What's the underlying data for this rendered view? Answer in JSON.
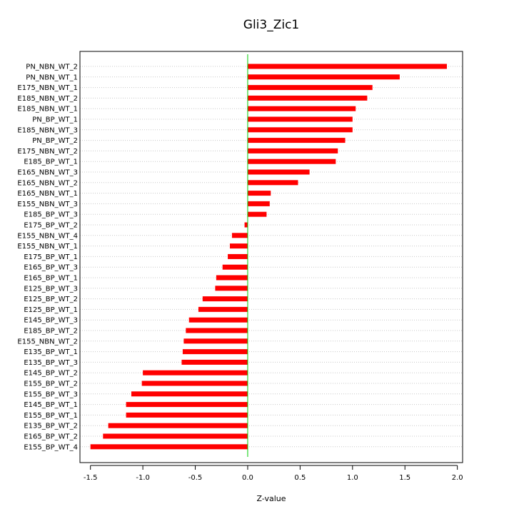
{
  "chart_data": {
    "type": "bar",
    "orientation": "horizontal",
    "title": "Gli3_Zic1",
    "xlabel": "Z-value",
    "ylabel": "",
    "xlim": [
      -1.6,
      2.05
    ],
    "x_ticks": [
      -1.5,
      -1.0,
      -0.5,
      0.0,
      0.5,
      1.0,
      1.5,
      2.0
    ],
    "x_tick_labels": [
      "-1.5",
      "-1.0",
      "-0.5",
      "0.0",
      "0.5",
      "1.0",
      "1.5",
      "2.0"
    ],
    "reference_line": 0.0,
    "grid": "horizontal dotted",
    "categories": [
      "PN_NBN_WT_2",
      "PN_NBN_WT_1",
      "E175_NBN_WT_1",
      "E185_NBN_WT_2",
      "E185_NBN_WT_1",
      "PN_BP_WT_1",
      "E185_NBN_WT_3",
      "PN_BP_WT_2",
      "E175_NBN_WT_2",
      "E185_BP_WT_1",
      "E165_NBN_WT_3",
      "E165_NBN_WT_2",
      "E165_NBN_WT_1",
      "E155_NBN_WT_3",
      "E185_BP_WT_3",
      "E175_BP_WT_2",
      "E155_NBN_WT_4",
      "E155_NBN_WT_1",
      "E175_BP_WT_1",
      "E165_BP_WT_3",
      "E165_BP_WT_1",
      "E125_BP_WT_3",
      "E125_BP_WT_2",
      "E125_BP_WT_1",
      "E145_BP_WT_3",
      "E185_BP_WT_2",
      "E155_NBN_WT_2",
      "E135_BP_WT_1",
      "E135_BP_WT_3",
      "E145_BP_WT_2",
      "E155_BP_WT_2",
      "E155_BP_WT_3",
      "E145_BP_WT_1",
      "E155_BP_WT_1",
      "E135_BP_WT_2",
      "E165_BP_WT_2",
      "E155_BP_WT_4"
    ],
    "values": [
      1.9,
      1.45,
      1.19,
      1.14,
      1.03,
      1.0,
      1.0,
      0.93,
      0.86,
      0.84,
      0.59,
      0.48,
      0.22,
      0.21,
      0.18,
      -0.03,
      -0.15,
      -0.17,
      -0.19,
      -0.24,
      -0.3,
      -0.31,
      -0.43,
      -0.47,
      -0.56,
      -0.59,
      -0.61,
      -0.62,
      -0.63,
      -1.0,
      -1.01,
      -1.11,
      -1.16,
      -1.16,
      -1.33,
      -1.38,
      -1.5
    ],
    "colors": {
      "bar": "#ff0000",
      "zero_line": "#00cc00",
      "grid": "#c8c8c8",
      "axis": "#000000"
    }
  }
}
